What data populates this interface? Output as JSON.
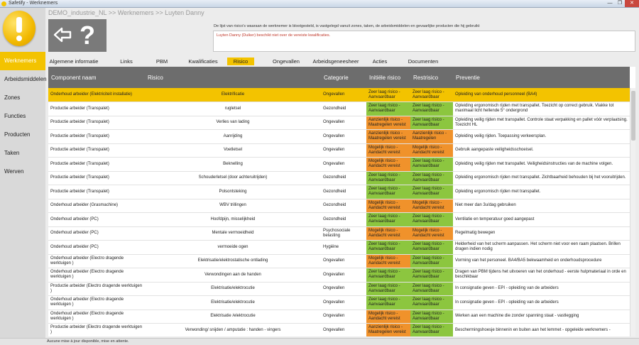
{
  "window": {
    "title": "Safetify - Werknemers",
    "min": "—",
    "max": "❐",
    "close": "✕"
  },
  "breadcrumb": "DEMO_industrie_NL >> Werknemers >> Luyten Danny",
  "sidebar": {
    "items": [
      {
        "label": "Werknemers",
        "active": true
      },
      {
        "label": "Arbeidsmiddelen",
        "active": false
      },
      {
        "label": "Zones",
        "active": false
      },
      {
        "label": "Functies",
        "active": false
      },
      {
        "label": "Producten",
        "active": false
      },
      {
        "label": "Taken",
        "active": false
      },
      {
        "label": "Werven",
        "active": false
      }
    ]
  },
  "help": {
    "symbol": "?"
  },
  "description": "De lijst van risico's waaraan de werknemer is blootgesteld, is vastgelegd vanuit zones, taken, de arbeidsmiddelen en gevaarlijke producten die hij gebruikt",
  "qualification_note": "Luyten Danny (Duiker) beschikt niet over de vereiste kwalificaties.",
  "tabs": [
    {
      "label": "Algemene informatie",
      "active": false
    },
    {
      "label": "Links",
      "active": false
    },
    {
      "label": "PBM",
      "active": false
    },
    {
      "label": "Kwalificaties",
      "active": false
    },
    {
      "label": "Risico",
      "active": true
    },
    {
      "label": "Ongevallen",
      "active": false
    },
    {
      "label": "Arbeidsgeneesheer",
      "active": false
    },
    {
      "label": "Acties",
      "active": false
    },
    {
      "label": "Documenten",
      "active": false
    }
  ],
  "table": {
    "headers": {
      "component": "Component naam",
      "risico": "Risico",
      "categorie": "Categorie",
      "initieel": "Initiële risico",
      "restrisico": "Restrisico",
      "preventie": "Preventie"
    },
    "rows": [
      {
        "component": "Onderhoud arbeider (Elektriciteit installatie)",
        "risico": "Elektrificatie",
        "categorie": "Ongevallen",
        "initieel": "Zeer laag risico - Aanvaardbaar",
        "initieel_level": "green",
        "rest": "Zeer laag risico - Aanvaardbaar",
        "rest_level": "green",
        "preventie": "Opleiding van onderhoud personneel (BA4)",
        "selected": true
      },
      {
        "component": "Productie arbeider (Transpalet)",
        "risico": "rugletsel",
        "categorie": "Gezondheid",
        "initieel": "Zeer laag risico - Aanvaardbaar",
        "initieel_level": "green",
        "rest": "Zeer laag risico - Aanvaardbaar",
        "rest_level": "green",
        "preventie": "Opleiding ergonomisch rijden met transpallet.  Toezicht op correct gebruik. Vlakke tot maximaal licht hellende 5° ondergrond",
        "selected": false
      },
      {
        "component": "Productie arbeider (Transpalet)",
        "risico": "Verlies van lading",
        "categorie": "Ongevallen",
        "initieel": "Aanzienlijk risico - Maatregelen vereist",
        "initieel_level": "orange",
        "rest": "Zeer laag risico - Aanvaardbaar",
        "rest_level": "green",
        "preventie": "Opleiding veilig rijden met transpallet.  Controle staat verpakking en pallet vóór verplaatsing. Toezicht HL",
        "selected": false
      },
      {
        "component": "Productie arbeider (Transpalet)",
        "risico": "Aanrijding",
        "categorie": "Ongevallen",
        "initieel": "Aanzienlijk risico - Maatregelen vereist",
        "initieel_level": "orange",
        "rest": "Aanzienlijk risico - Maatregelen",
        "rest_level": "orange",
        "preventie": "Opleiding veilig rijden. Toepassing verkeersplan.",
        "selected": false
      },
      {
        "component": "Productie arbeider (Transpalet)",
        "risico": "Voetletsel",
        "categorie": "Ongevallen",
        "initieel": "Mogelijk risico - Aandacht vereist",
        "initieel_level": "orange",
        "rest": "Mogelijk risico - Aandacht vereist",
        "rest_level": "orange",
        "preventie": "Gebruik aangepaste veiligheidsschoeisel.",
        "selected": false
      },
      {
        "component": "Productie arbeider (Transpalet)",
        "risico": "Beknelling",
        "categorie": "Ongevallen",
        "initieel": "Mogelijk risico - Aandacht vereist",
        "initieel_level": "orange",
        "rest": "Zeer laag risico - Aanvaardbaar",
        "rest_level": "green",
        "preventie": "Opleiding veilig rijden met transpallet. Veiligheidsinstructies van de machine volgen.",
        "selected": false
      },
      {
        "component": "Productie arbeider (Transpalet)",
        "risico": "Schouderletsel (door achteruitrijden)",
        "categorie": "Gezondheid",
        "initieel": "Zeer laag risico - Aanvaardbaar",
        "initieel_level": "green",
        "rest": "Zeer laag risico - Aanvaardbaar",
        "rest_level": "green",
        "preventie": "Opleiding ergonomisch rijden met transpallet. Zichtbaarheid behouden bij het vooruitrijden.",
        "selected": false
      },
      {
        "component": "Productie arbeider (Transpalet)",
        "risico": "Polsontsteking",
        "categorie": "Gezondheid",
        "initieel": "Zeer laag risico - Aanvaardbaar",
        "initieel_level": "green",
        "rest": "Zeer laag risico - Aanvaardbaar",
        "rest_level": "green",
        "preventie": "Opleiding ergonomisch rijden met transpallet.",
        "selected": false
      },
      {
        "component": "Onderhoud arbeider (Grasmachine)",
        "risico": "WBV trillingen",
        "categorie": "Gezondheid",
        "initieel": "Mogelijk risico - Aandacht vereist",
        "initieel_level": "orange",
        "rest": "Mogelijk risico - Aandacht vereist",
        "rest_level": "orange",
        "preventie": "Niet meer dan 3u/dag gebruiken",
        "selected": false
      },
      {
        "component": "Onderhoud arbeider (PC)",
        "risico": "Hoofdpijn, misselijkheid",
        "categorie": "Gezondheid",
        "initieel": "Zeer laag risico - Aanvaardbaar",
        "initieel_level": "green",
        "rest": "Zeer laag risico - Aanvaardbaar",
        "rest_level": "green",
        "preventie": "Ventilatie en temperatuur goed aangepast",
        "selected": false
      },
      {
        "component": "Onderhoud arbeider (PC)",
        "risico": "Mentale vermoeidheid",
        "categorie": "Psychosociale belasting",
        "initieel": "Mogelijk risico - Aandacht vereist",
        "initieel_level": "orange",
        "rest": "Mogelijk risico - Aandacht vereist",
        "rest_level": "orange",
        "preventie": "Regelmatig bewegen",
        "selected": false
      },
      {
        "component": "Onderhoud arbeider (PC)",
        "risico": "vermoeide ogen",
        "categorie": "Hygiëne",
        "initieel": "Zeer laag risico - Aanvaardbaar",
        "initieel_level": "green",
        "rest": "Zeer laag risico - Aanvaardbaar",
        "rest_level": "green",
        "preventie": "Helderheid van het scherm aanpassen. Het scherm niet voor een raam plaatsen. Brillen dragen indien nodig",
        "selected": false
      },
      {
        "component": "Onderhoud arbeider (Electro dragende werktuigen )",
        "risico": "Elektrisatie/elektrostatische ontlading",
        "categorie": "Ongevallen",
        "initieel": "Mogelijk risico - Aandacht vereist",
        "initieel_level": "orange",
        "rest": "Zeer laag risico - Aanvaardbaar",
        "rest_level": "green",
        "preventie": "Vorming van het personeel. BA4/BA5 bekwaamheid en onderhoudsprocedure",
        "selected": false
      },
      {
        "component": "Onderhoud arbeider (Electro dragende werktuigen )",
        "risico": "Verwondingen aan de handen",
        "categorie": "Ongevallen",
        "initieel": "Zeer laag risico - Aanvaardbaar",
        "initieel_level": "green",
        "rest": "Zeer laag risico - Aanvaardbaar",
        "rest_level": "green",
        "preventie": "Dragen van PBM tijdens het uitvoeren van het onderhoud - eerste hulpmateriaal in orde en beschikbaar",
        "selected": false
      },
      {
        "component": "Productie arbeider (Electro dragende werktuigen )",
        "risico": "Elektrisatie/elektrocutie",
        "categorie": "Ongevallen",
        "initieel": "Zeer laag risico - Aanvaardbaar",
        "initieel_level": "green",
        "rest": "Zeer laag risico - Aanvaardbaar",
        "rest_level": "green",
        "preventie": "In consignatie geven - EPI - opleiding van de arbeiders",
        "selected": false
      },
      {
        "component": "Onderhoud arbeider (Electro dragende werktuigen )",
        "risico": "Elektrisatie/elektrocutie",
        "categorie": "Ongevallen",
        "initieel": "Zeer laag risico - Aanvaardbaar",
        "initieel_level": "green",
        "rest": "Zeer laag risico - Aanvaardbaar",
        "rest_level": "green",
        "preventie": "In consignatie geven - EPI - opleiding van de arbeiders",
        "selected": false
      },
      {
        "component": "Onderhoud arbeider (Electro dragende werktuigen )",
        "risico": "Elektrisatie /elektrocutie",
        "categorie": "Ongevallen",
        "initieel": "Mogelijk risico - Aandacht vereist",
        "initieel_level": "orange",
        "rest": "Zeer laag risico - Aanvaardbaar",
        "rest_level": "green",
        "preventie": "Werken aan een machine die zonder spanning staat - vastlegging",
        "selected": false
      },
      {
        "component": "Productie arbeider (Electro dragende werktuigen )",
        "risico": "Verwonding/ snijden / amputatie : handen - vingers",
        "categorie": "Ongevallen",
        "initieel": "Aanzienlijk risico - Maatregelen vereist",
        "initieel_level": "orange",
        "rest": "Zeer laag risico - Aanvaardbaar",
        "rest_level": "green",
        "preventie": "Beschermingshoesje binnenin en buiten aan het lemmet - opgeleide werknemers -",
        "selected": false
      }
    ]
  },
  "status": "Aucune mise à jour disponible, mise en attente.",
  "colors": {
    "accent": "#f3c300",
    "green": "#8cc63f",
    "orange": "#f0922b",
    "header": "#6d6d6d"
  }
}
